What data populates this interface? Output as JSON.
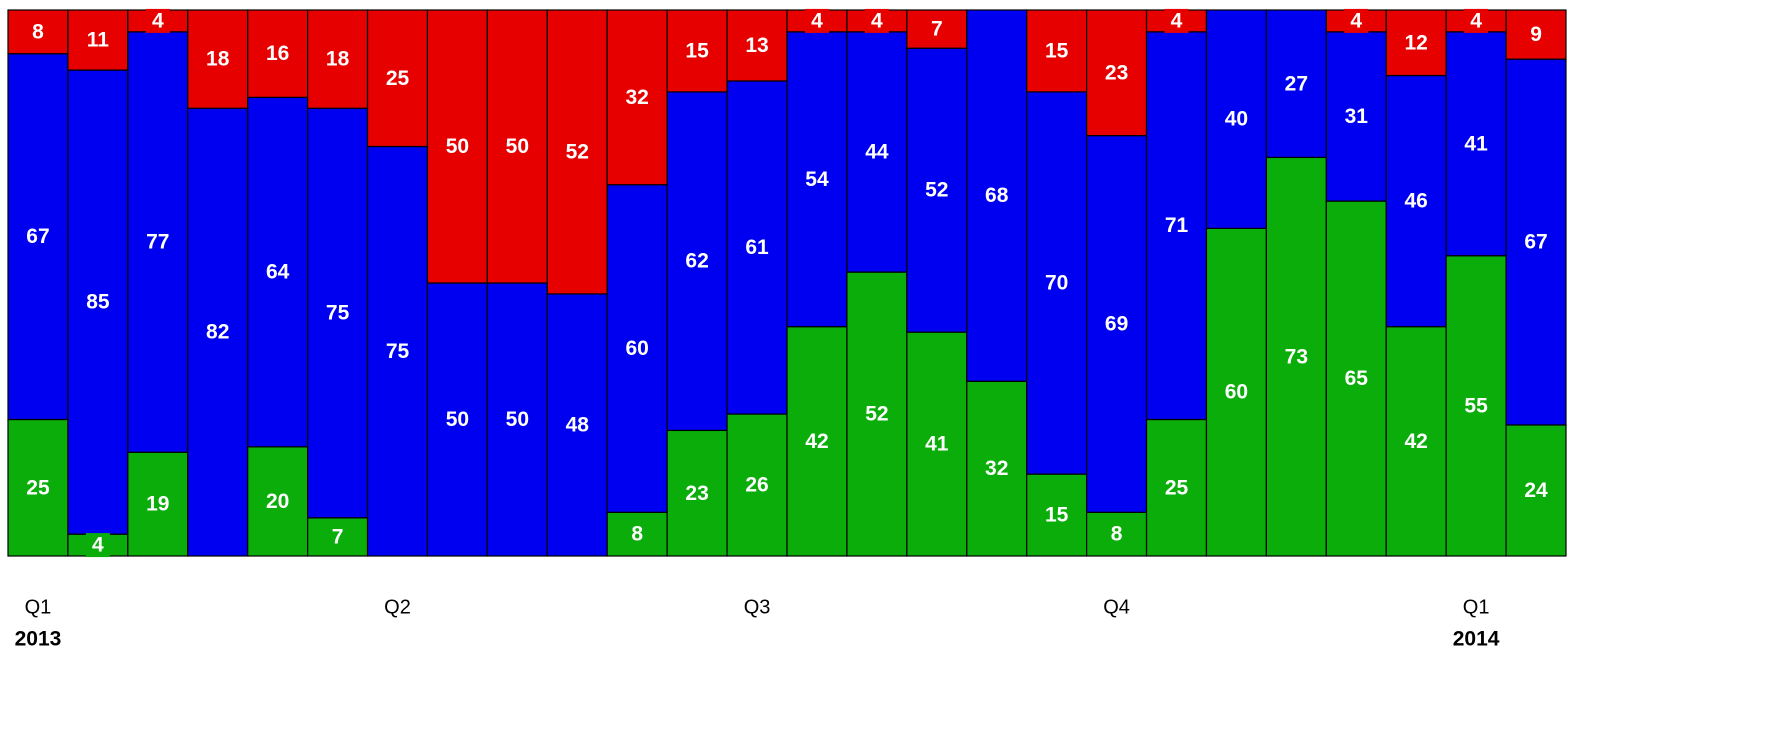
{
  "chart_data": {
    "type": "stacked_bar_100",
    "categories": [
      "Q1",
      null,
      null,
      null,
      null,
      null,
      "Q2",
      null,
      null,
      null,
      null,
      null,
      "Q3",
      null,
      null,
      null,
      null,
      null,
      "Q4",
      null,
      null,
      null,
      null,
      null,
      "Q1",
      null
    ],
    "year_labels": [
      "2013",
      null,
      null,
      null,
      null,
      null,
      null,
      null,
      null,
      null,
      null,
      null,
      null,
      null,
      null,
      null,
      null,
      null,
      null,
      null,
      null,
      null,
      null,
      null,
      "2014",
      null
    ],
    "ylim": [
      0,
      100
    ],
    "series": [
      {
        "color": "#0aad0a",
        "values": [
          25,
          4,
          19,
          null,
          20,
          7,
          null,
          null,
          null,
          null,
          8,
          23,
          26,
          42,
          52,
          41,
          32,
          15,
          8,
          25,
          60,
          73,
          65,
          42,
          55,
          24
        ]
      },
      {
        "color": "#0000f0",
        "values": [
          67,
          85,
          77,
          82,
          64,
          75,
          75,
          50,
          50,
          48,
          60,
          62,
          61,
          54,
          44,
          52,
          68,
          70,
          69,
          71,
          40,
          27,
          31,
          46,
          41,
          67
        ]
      },
      {
        "color": "#e60000",
        "values": [
          8,
          11,
          4,
          18,
          16,
          18,
          25,
          50,
          50,
          52,
          32,
          15,
          13,
          4,
          4,
          7,
          null,
          15,
          23,
          4,
          null,
          null,
          4,
          12,
          4,
          9
        ]
      }
    ]
  }
}
